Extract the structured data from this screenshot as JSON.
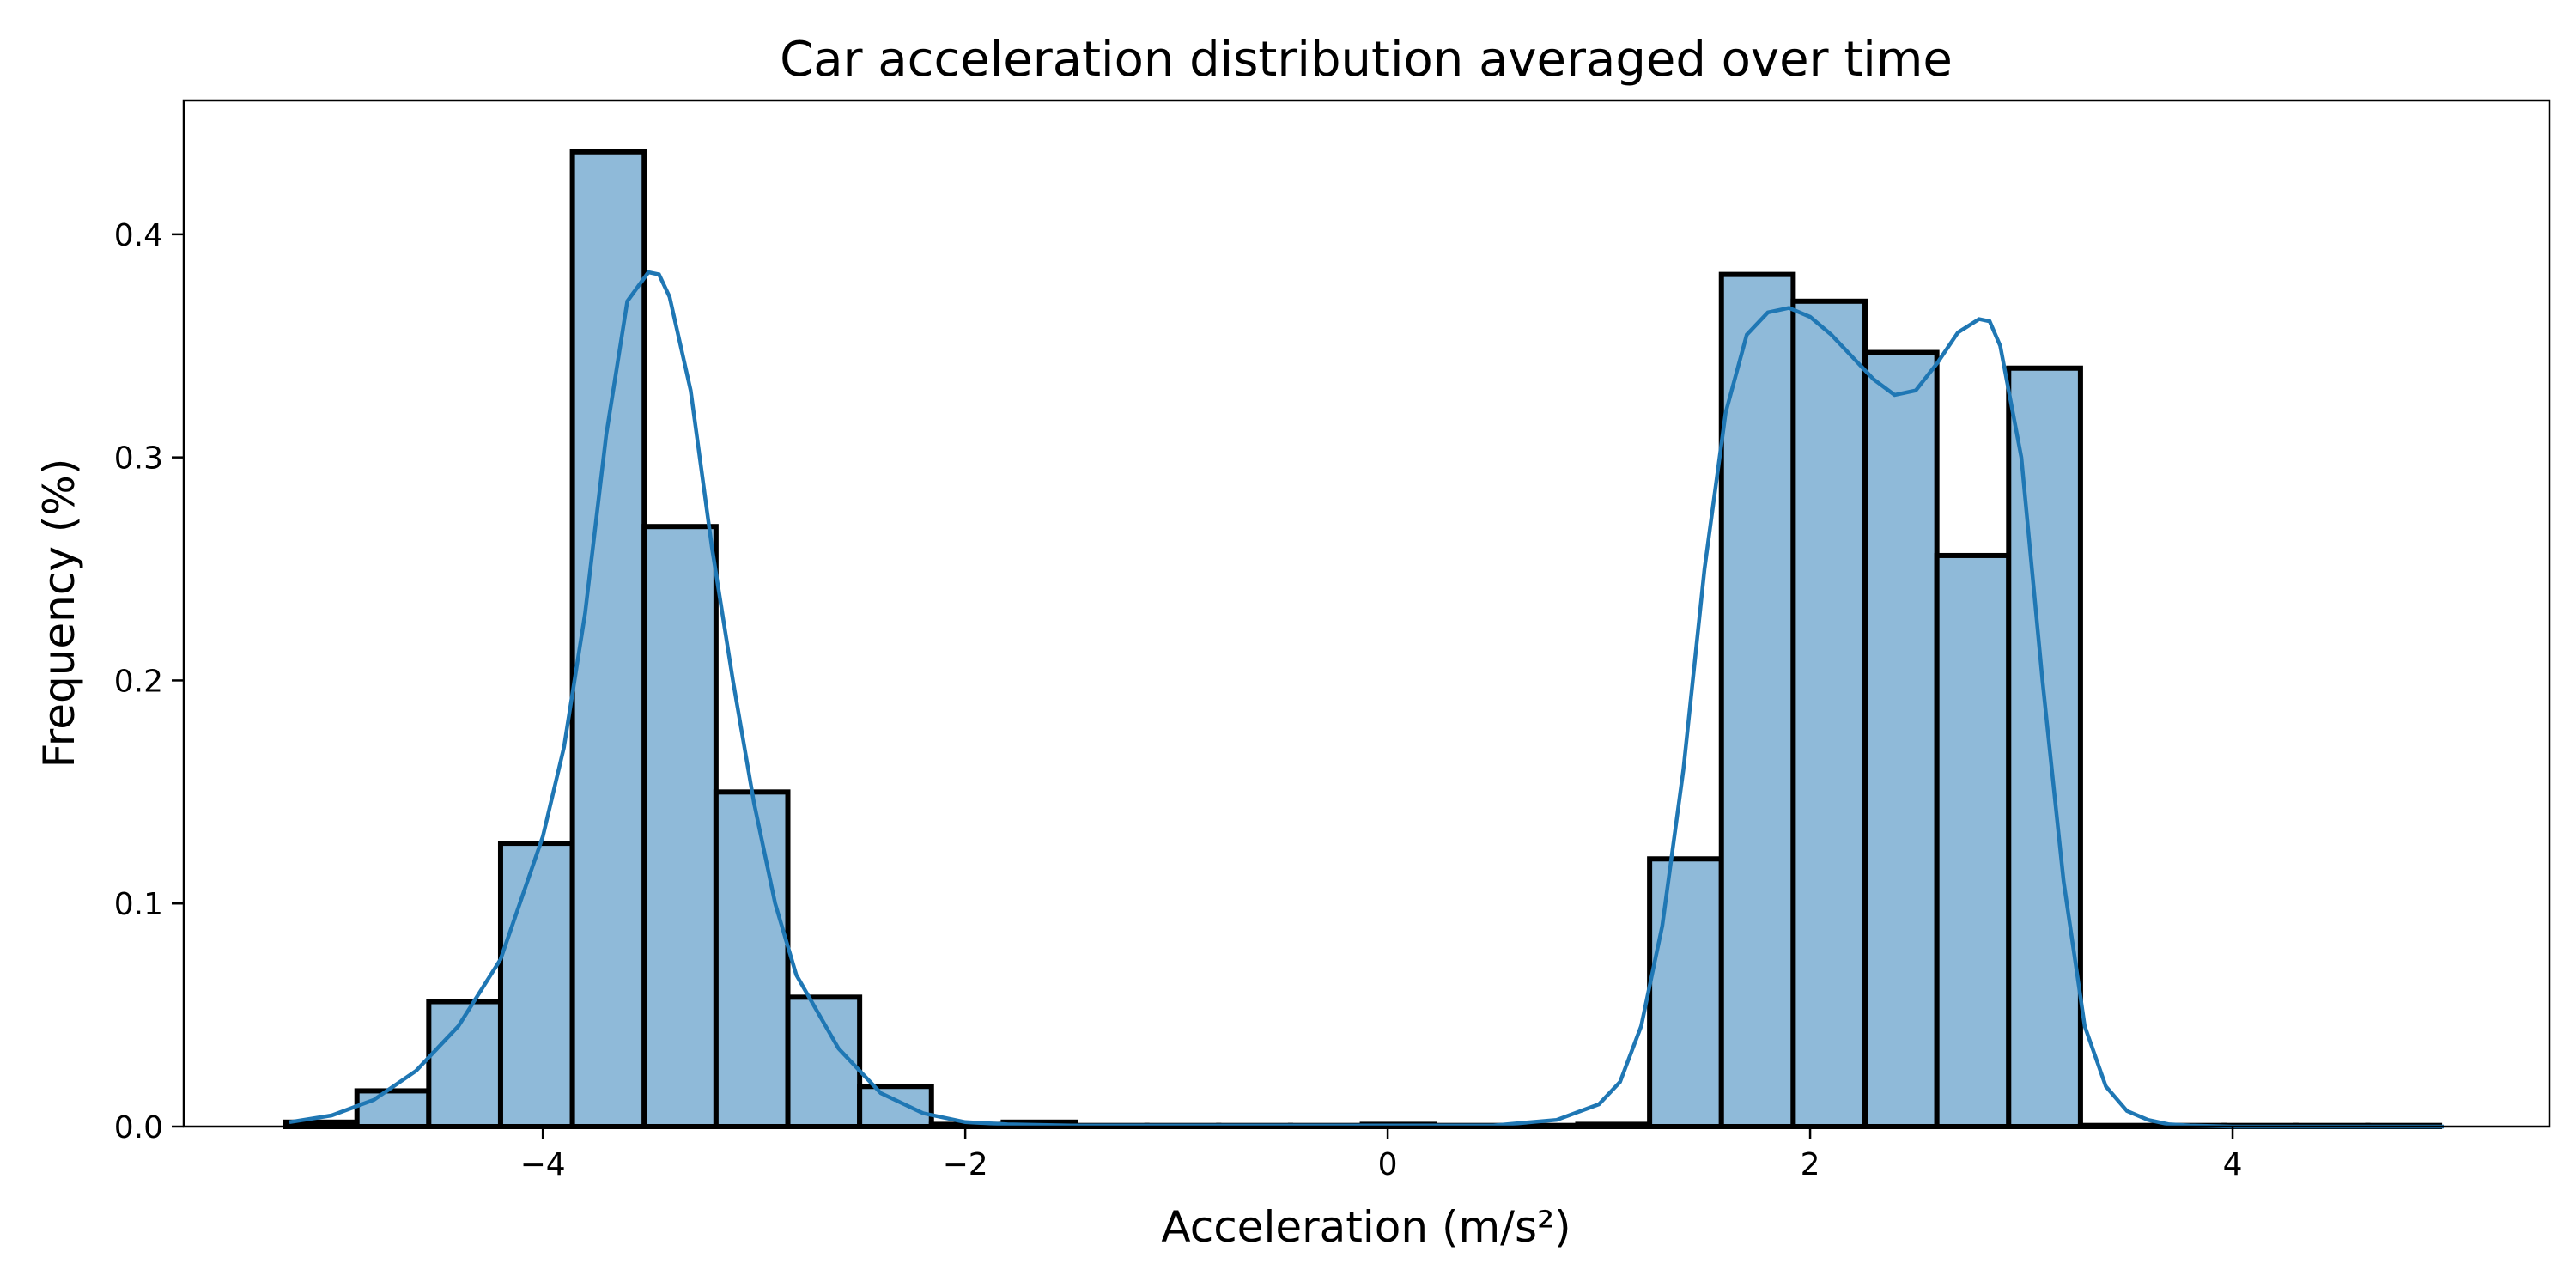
{
  "chart_data": {
    "type": "bar",
    "subtype": "histogram with density curve",
    "title": "Car acceleration distribution averaged over time",
    "xlabel": "Acceleration (m/s²)",
    "ylabel": "Frequency (%)",
    "xlim": [
      -5.7,
      5.5
    ],
    "ylim": [
      0,
      0.46
    ],
    "xticks": [
      -4,
      -2,
      0,
      2,
      4
    ],
    "xtick_labels": [
      "−4",
      "−2",
      "0",
      "2",
      "4"
    ],
    "yticks": [
      0.0,
      0.1,
      0.2,
      0.3,
      0.4
    ],
    "ytick_labels": [
      "0.0",
      "0.1",
      "0.2",
      "0.3",
      "0.4"
    ],
    "grid": false,
    "legend": "none",
    "bar_color": "#8fbad9",
    "edge_color": "#000000",
    "line_color": "#1f77b4",
    "bins": [
      {
        "x0": -5.22,
        "x1": -4.88,
        "value": 0.002
      },
      {
        "x0": -4.88,
        "x1": -4.54,
        "value": 0.016
      },
      {
        "x0": -4.54,
        "x1": -4.2,
        "value": 0.056
      },
      {
        "x0": -4.2,
        "x1": -3.86,
        "value": 0.127
      },
      {
        "x0": -3.86,
        "x1": -3.52,
        "value": 0.437
      },
      {
        "x0": -3.52,
        "x1": -3.18,
        "value": 0.269
      },
      {
        "x0": -3.18,
        "x1": -2.84,
        "value": 0.15
      },
      {
        "x0": -2.84,
        "x1": -2.5,
        "value": 0.058
      },
      {
        "x0": -2.5,
        "x1": -2.16,
        "value": 0.018
      },
      {
        "x0": -2.16,
        "x1": -1.82,
        "value": 0.001
      },
      {
        "x0": -1.82,
        "x1": -1.48,
        "value": 0.002
      },
      {
        "x0": -1.48,
        "x1": -1.14,
        "value": 0.0005
      },
      {
        "x0": -1.14,
        "x1": -0.8,
        "value": 0.0005
      },
      {
        "x0": -0.8,
        "x1": -0.46,
        "value": 0.0005
      },
      {
        "x0": -0.46,
        "x1": -0.12,
        "value": 0.0005
      },
      {
        "x0": -0.12,
        "x1": 0.22,
        "value": 0.001
      },
      {
        "x0": 0.22,
        "x1": 0.56,
        "value": 0.0005
      },
      {
        "x0": 0.56,
        "x1": 0.9,
        "value": 0.0005
      },
      {
        "x0": 0.9,
        "x1": 1.24,
        "value": 0.001
      },
      {
        "x0": 1.24,
        "x1": 1.58,
        "value": 0.12
      },
      {
        "x0": 1.58,
        "x1": 1.92,
        "value": 0.382
      },
      {
        "x0": 1.92,
        "x1": 2.26,
        "value": 0.37
      },
      {
        "x0": 2.26,
        "x1": 2.6,
        "value": 0.347
      },
      {
        "x0": 2.6,
        "x1": 2.94,
        "value": 0.256
      },
      {
        "x0": 2.94,
        "x1": 3.28,
        "value": 0.34
      },
      {
        "x0": 3.28,
        "x1": 3.62,
        "value": 0.0005
      },
      {
        "x0": 3.62,
        "x1": 3.96,
        "value": 0.0005
      },
      {
        "x0": 3.96,
        "x1": 4.3,
        "value": 0.0005
      },
      {
        "x0": 4.3,
        "x1": 4.64,
        "value": 0.0005
      },
      {
        "x0": 4.64,
        "x1": 4.98,
        "value": 0.0005
      }
    ],
    "density_curve": {
      "x": [
        -5.2,
        -5.0,
        -4.8,
        -4.6,
        -4.4,
        -4.2,
        -4.0,
        -3.9,
        -3.8,
        -3.7,
        -3.6,
        -3.5,
        -3.45,
        -3.4,
        -3.3,
        -3.2,
        -3.1,
        -3.0,
        -2.9,
        -2.8,
        -2.6,
        -2.4,
        -2.2,
        -2.0,
        -1.8,
        -1.5,
        -1.0,
        -0.5,
        0.0,
        0.5,
        0.8,
        1.0,
        1.1,
        1.2,
        1.3,
        1.4,
        1.5,
        1.6,
        1.7,
        1.8,
        1.9,
        2.0,
        2.1,
        2.2,
        2.3,
        2.4,
        2.5,
        2.6,
        2.7,
        2.8,
        2.85,
        2.9,
        3.0,
        3.1,
        3.2,
        3.3,
        3.4,
        3.5,
        3.6,
        3.7,
        3.8,
        4.0,
        4.5,
        5.0
      ],
      "y": [
        0.002,
        0.005,
        0.012,
        0.025,
        0.045,
        0.075,
        0.13,
        0.17,
        0.23,
        0.31,
        0.37,
        0.383,
        0.382,
        0.372,
        0.33,
        0.26,
        0.2,
        0.145,
        0.1,
        0.068,
        0.035,
        0.015,
        0.006,
        0.002,
        0.001,
        0.0005,
        0.0005,
        0.0005,
        0.0005,
        0.0005,
        0.003,
        0.01,
        0.02,
        0.045,
        0.09,
        0.16,
        0.25,
        0.32,
        0.355,
        0.365,
        0.367,
        0.363,
        0.355,
        0.345,
        0.335,
        0.328,
        0.33,
        0.342,
        0.356,
        0.362,
        0.361,
        0.35,
        0.3,
        0.2,
        0.11,
        0.045,
        0.018,
        0.007,
        0.003,
        0.001,
        0.0005,
        0.0,
        0.0,
        0.0
      ]
    }
  }
}
